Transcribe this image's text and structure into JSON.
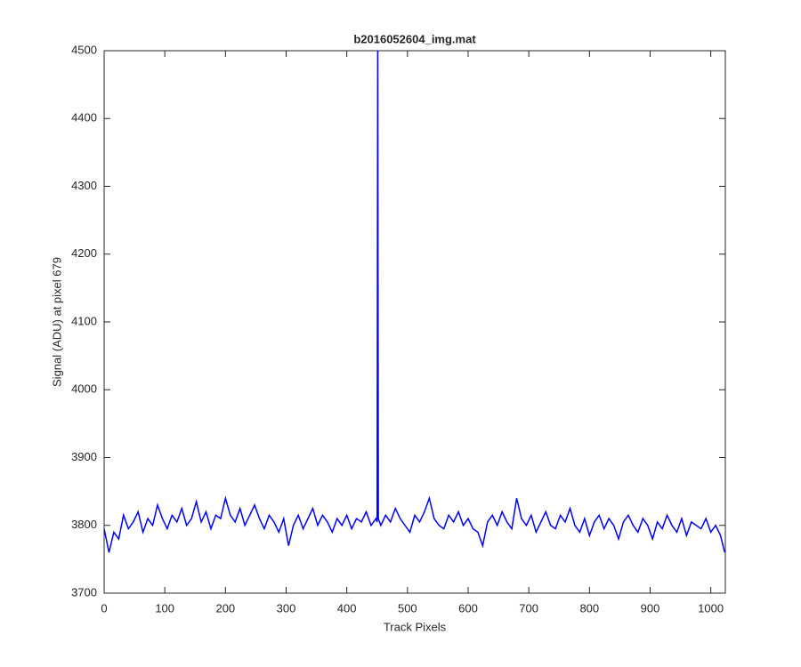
{
  "chart_data": {
    "type": "line",
    "title": "b2016052604_img.mat",
    "xlabel": "Track Pixels",
    "ylabel": "Signal (ADU) at pixel 679",
    "xlim": [
      0,
      1024
    ],
    "ylim": [
      3700,
      4500
    ],
    "xticks": [
      0,
      100,
      200,
      300,
      400,
      500,
      600,
      700,
      800,
      900,
      1000
    ],
    "yticks": [
      3700,
      3800,
      3900,
      4000,
      4100,
      4200,
      4300,
      4400,
      4500
    ],
    "grid": false,
    "x": [
      0,
      8,
      16,
      24,
      32,
      40,
      48,
      56,
      64,
      72,
      80,
      88,
      96,
      104,
      112,
      120,
      128,
      136,
      144,
      152,
      160,
      168,
      176,
      184,
      192,
      200,
      208,
      216,
      224,
      232,
      240,
      248,
      256,
      264,
      272,
      280,
      288,
      296,
      304,
      312,
      320,
      328,
      336,
      344,
      352,
      360,
      368,
      376,
      384,
      392,
      400,
      408,
      416,
      424,
      432,
      440,
      448,
      450,
      451,
      452,
      456,
      464,
      472,
      480,
      488,
      496,
      504,
      512,
      520,
      528,
      536,
      544,
      552,
      560,
      568,
      576,
      584,
      592,
      600,
      608,
      616,
      624,
      632,
      640,
      648,
      656,
      664,
      672,
      680,
      688,
      696,
      704,
      712,
      720,
      728,
      736,
      744,
      752,
      760,
      768,
      776,
      784,
      792,
      800,
      808,
      816,
      824,
      832,
      840,
      848,
      856,
      864,
      872,
      880,
      888,
      896,
      904,
      912,
      920,
      928,
      936,
      944,
      952,
      960,
      968,
      976,
      984,
      992,
      1000,
      1008,
      1016,
      1023
    ],
    "series": [
      {
        "name": "signal",
        "color": "#0000ff",
        "values": [
          3795,
          3760,
          3790,
          3780,
          3815,
          3795,
          3805,
          3820,
          3790,
          3810,
          3800,
          3830,
          3810,
          3795,
          3815,
          3805,
          3825,
          3800,
          3810,
          3835,
          3805,
          3820,
          3795,
          3815,
          3810,
          3840,
          3815,
          3805,
          3825,
          3800,
          3815,
          3830,
          3810,
          3795,
          3815,
          3805,
          3790,
          3810,
          3770,
          3800,
          3815,
          3795,
          3810,
          3825,
          3800,
          3815,
          3805,
          3790,
          3810,
          3800,
          3815,
          3795,
          3810,
          3805,
          3820,
          3800,
          3810,
          3805,
          4520,
          3810,
          3800,
          3815,
          3805,
          3825,
          3810,
          3800,
          3790,
          3815,
          3805,
          3820,
          3840,
          3810,
          3800,
          3795,
          3815,
          3805,
          3820,
          3800,
          3810,
          3795,
          3790,
          3770,
          3805,
          3815,
          3800,
          3820,
          3805,
          3795,
          3840,
          3810,
          3800,
          3815,
          3790,
          3805,
          3820,
          3800,
          3795,
          3815,
          3805,
          3825,
          3800,
          3790,
          3810,
          3785,
          3805,
          3815,
          3795,
          3810,
          3800,
          3780,
          3805,
          3815,
          3800,
          3790,
          3810,
          3800,
          3780,
          3805,
          3795,
          3815,
          3800,
          3790,
          3810,
          3785,
          3805,
          3800,
          3795,
          3810,
          3790,
          3800,
          3785,
          3760
        ]
      }
    ]
  }
}
